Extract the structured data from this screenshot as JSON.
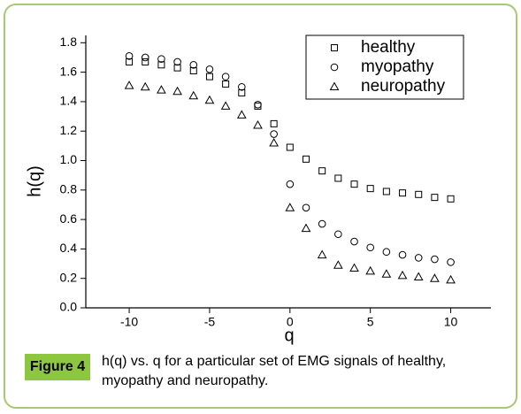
{
  "chart_data": {
    "type": "scatter",
    "x_label": "q",
    "y_label": "h(q)",
    "x": [
      -10,
      -9,
      -8,
      -7,
      -6,
      -5,
      -4,
      -3,
      -2,
      -1,
      0,
      1,
      2,
      3,
      4,
      5,
      6,
      7,
      8,
      9,
      10
    ],
    "series": [
      {
        "name": "healthy",
        "color": "#000000",
        "marker": "square",
        "values": [
          1.67,
          1.67,
          1.65,
          1.63,
          1.61,
          1.57,
          1.52,
          1.46,
          1.37,
          1.25,
          1.09,
          1.01,
          0.93,
          0.88,
          0.84,
          0.81,
          0.79,
          0.78,
          0.77,
          0.75,
          0.74
        ]
      },
      {
        "name": "myopathy",
        "color": "#000000",
        "marker": "circle",
        "values": [
          1.71,
          1.7,
          1.69,
          1.67,
          1.65,
          1.62,
          1.57,
          1.5,
          1.38,
          1.18,
          0.84,
          0.68,
          0.57,
          0.5,
          0.45,
          0.41,
          0.38,
          0.36,
          0.34,
          0.33,
          0.31
        ]
      },
      {
        "name": "neuropathy",
        "color": "#000000",
        "marker": "triangle",
        "values": [
          1.51,
          1.5,
          1.48,
          1.47,
          1.44,
          1.41,
          1.37,
          1.31,
          1.24,
          1.12,
          0.68,
          0.54,
          0.36,
          0.29,
          0.27,
          0.25,
          0.23,
          0.22,
          0.21,
          0.2,
          0.19
        ]
      }
    ],
    "xlim": [
      -12.7,
      12.5
    ],
    "xticks": [
      -10,
      -5,
      0,
      5,
      10
    ],
    "ylim": [
      0,
      1.85
    ],
    "yticks": [
      {
        "value": 0,
        "label": "0.0"
      },
      0.2,
      0.4,
      0.6,
      0.8,
      {
        "value": 1,
        "label": "1.0"
      },
      1.2,
      1.4,
      1.6,
      1.8
    ],
    "legend": "upper right"
  },
  "caption": {
    "label": "Figure 4",
    "text": "h(q) vs. q for a particular set of EMG signals of healthy, myopathy and neuropathy."
  }
}
